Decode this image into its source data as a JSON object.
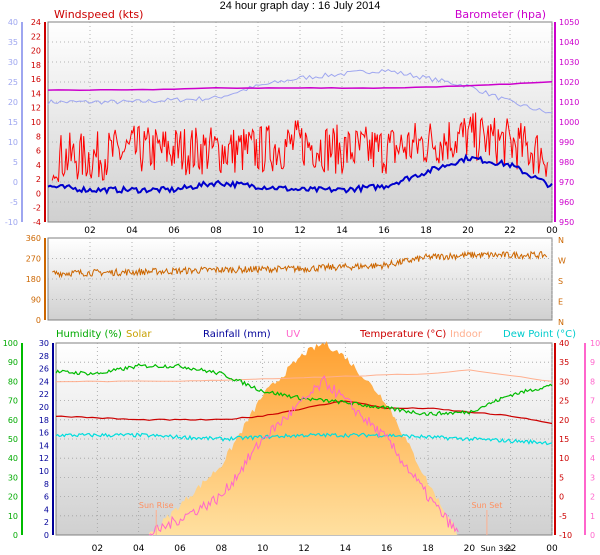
{
  "title": "24 hour graph day : 16 July 2014",
  "x_ticks": [
    "02",
    "04",
    "06",
    "08",
    "10",
    "12",
    "14",
    "16",
    "18",
    "20",
    "22",
    "00"
  ],
  "sun_labels": {
    "rise": "Sun Rise",
    "set": "Sun Set",
    "set_tick": "Sun 3ss"
  },
  "colors": {
    "wind": "#ff0000",
    "gust": "#ff0000",
    "avg_wind": "#0000cc",
    "gust_band": "#ff0000",
    "barometer": "#cc00cc",
    "wind_old": "#9ea6f0",
    "direction": "#cc6600",
    "humidity": "#00bb00",
    "solar": "#ffb040",
    "rainfall": "#000099",
    "uv": "#ff66cc",
    "temperature": "#cc0000",
    "indoor": "#ffb090",
    "dewpoint": "#00dddd",
    "grid": "#a0a0a0"
  },
  "charts": {
    "wind": {
      "title_left": "Windspeed (kts)",
      "title_right": "Barometer (hpa)",
      "left_ticks": [
        "40",
        "35",
        "30",
        "25",
        "20",
        "15",
        "10",
        "5",
        "0",
        "-5",
        "-10"
      ],
      "inner_left_ticks": [
        "24",
        "22",
        "20",
        "18",
        "16",
        "14",
        "12",
        "10",
        "8",
        "6",
        "4",
        "2",
        "0",
        "-2",
        "-4"
      ],
      "right_ticks": [
        "1050",
        "1040",
        "1030",
        "1020",
        "1010",
        "1000",
        "990",
        "980",
        "970",
        "960",
        "950"
      ]
    },
    "direction": {
      "left_ticks": [
        "360",
        "270",
        "180",
        "90",
        "0"
      ],
      "right_ticks": [
        "N",
        "W",
        "S",
        "E",
        "N"
      ]
    },
    "temp": {
      "title_humidity": "Humidity (%)",
      "title_solar": "Solar",
      "title_rain": "Rainfall (mm)",
      "title_uv": "UV",
      "title_temp": "Temperature (°C)",
      "title_indoor": "Indoor",
      "title_dew": "Dew Point (°C)",
      "humidity_ticks": [
        "100",
        "90",
        "80",
        "70",
        "60",
        "50",
        "40",
        "30",
        "20",
        "10",
        "0"
      ],
      "rain_ticks": [
        "30",
        "28",
        "26",
        "24",
        "22",
        "20",
        "18",
        "16",
        "14",
        "12",
        "10",
        "8",
        "6",
        "4",
        "2",
        "0"
      ],
      "temp_ticks": [
        "40",
        "35",
        "30",
        "25",
        "20",
        "15",
        "10",
        "5",
        "0",
        "-5",
        "-10"
      ],
      "uv_ticks": [
        "10",
        "9",
        "8",
        "7",
        "6",
        "5",
        "4",
        "3",
        "2",
        "1",
        "0"
      ]
    }
  },
  "chart_data": [
    {
      "type": "line",
      "x_unit": "hour of day",
      "series": [
        {
          "name": "Barometer (hpa)",
          "x": [
            0,
            4,
            8,
            12,
            16,
            20,
            24
          ],
          "values": [
            1016,
            1016,
            1017,
            1017,
            1017,
            1018,
            1020
          ]
        },
        {
          "name": "Windspeed (kts)",
          "x": [
            0,
            2,
            4,
            6,
            8,
            10,
            12,
            14,
            16,
            18,
            20,
            22,
            24
          ],
          "values": [
            1,
            0.5,
            0.5,
            0.5,
            1.5,
            1,
            0.5,
            0.5,
            1,
            3,
            5,
            4,
            1
          ]
        },
        {
          "name": "Gust (kts)",
          "x": [
            0,
            2,
            4,
            6,
            8,
            10,
            12,
            14,
            16,
            18,
            20,
            22,
            24
          ],
          "values": [
            4,
            4,
            5,
            5,
            5,
            5,
            6,
            5,
            5,
            6,
            7,
            6,
            4
          ]
        },
        {
          "name": "Windspeed scale 2 (kts)",
          "x": [
            0,
            4,
            8,
            10,
            12,
            14,
            16,
            18,
            20,
            22,
            24
          ],
          "values": [
            20,
            20,
            21,
            24,
            26,
            27,
            28,
            26,
            24,
            20,
            17
          ]
        }
      ]
    },
    {
      "type": "scatter",
      "x_unit": "hour of day",
      "series": [
        {
          "name": "Wind direction (deg)",
          "x": [
            0,
            4,
            8,
            12,
            16,
            18,
            20,
            24
          ],
          "values": [
            205,
            210,
            220,
            225,
            240,
            275,
            285,
            285
          ]
        }
      ]
    },
    {
      "type": "line",
      "x_unit": "hour of day",
      "series": [
        {
          "name": "Humidity (%)",
          "x": [
            0,
            2,
            4,
            6,
            8,
            10,
            12,
            14,
            16,
            18,
            20,
            22,
            24
          ],
          "values": [
            85,
            84,
            88,
            88,
            84,
            75,
            71,
            69,
            66,
            63,
            64,
            73,
            78
          ]
        },
        {
          "name": "Temperature (°C)",
          "x": [
            0,
            4,
            8,
            10,
            12,
            14,
            16,
            18,
            20,
            22,
            24
          ],
          "values": [
            21,
            20,
            20,
            21,
            23,
            25,
            23,
            23,
            22,
            21,
            19
          ]
        },
        {
          "name": "Dew Point (°C)",
          "x": [
            0,
            4,
            8,
            12,
            14,
            16,
            20,
            24
          ],
          "values": [
            16,
            16,
            15,
            16,
            16,
            16,
            15,
            14
          ]
        },
        {
          "name": "Indoor (°C)",
          "x": [
            0,
            6,
            12,
            18,
            20,
            24
          ],
          "values": [
            30,
            30,
            31,
            32,
            33,
            30
          ]
        },
        {
          "name": "UV",
          "x": [
            4.5,
            8,
            10,
            12,
            13,
            14,
            16,
            18,
            19.5
          ],
          "values": [
            0,
            2,
            5,
            7,
            8,
            7,
            5,
            2,
            0
          ]
        },
        {
          "name": "Solar",
          "x": [
            4.5,
            8,
            10,
            12,
            13,
            14,
            16,
            18,
            19.5
          ],
          "values": [
            0,
            200,
            400,
            520,
            550,
            510,
            380,
            150,
            0
          ]
        },
        {
          "name": "Rainfall (mm)",
          "x": [
            0,
            24
          ],
          "values": [
            0,
            0
          ]
        }
      ]
    }
  ]
}
